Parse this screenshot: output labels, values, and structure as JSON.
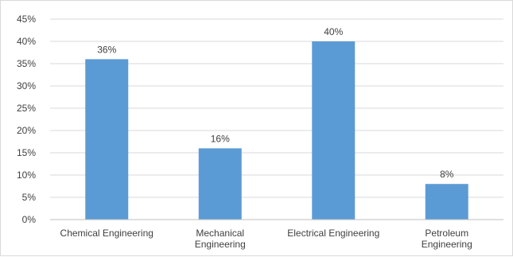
{
  "chart_data": {
    "type": "bar",
    "categories": [
      [
        "Chemical Engineering"
      ],
      [
        "Mechanical",
        "Engineering"
      ],
      [
        "Electrical Engineering"
      ],
      [
        "Petroleum",
        "Engineering"
      ]
    ],
    "values": [
      36,
      16,
      40,
      8
    ],
    "data_labels": [
      "36%",
      "16%",
      "40%",
      "8%"
    ],
    "title": "",
    "xlabel": "",
    "ylabel": "",
    "ylim": [
      0,
      45
    ],
    "y_ticks": [
      0,
      5,
      10,
      15,
      20,
      25,
      30,
      35,
      40,
      45
    ],
    "y_tick_labels": [
      "0%",
      "5%",
      "10%",
      "15%",
      "20%",
      "25%",
      "30%",
      "35%",
      "40%",
      "45%"
    ],
    "grid": true,
    "legend": "none",
    "colors": {
      "bar": "#5b9bd5",
      "grid": "#d9d9d9",
      "axis": "#bfbfbf",
      "text": "#404040"
    }
  }
}
